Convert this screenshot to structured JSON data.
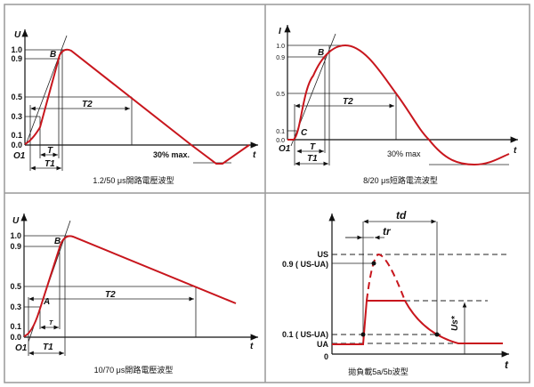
{
  "curve_color": "#c8161d",
  "panels": [
    {
      "caption": "1.2/50 μs開路電壓波型",
      "yaxis": "U",
      "xaxis": "t",
      "ticks": [
        "1.0",
        "0.9",
        "0.5",
        "0.3",
        "0.1",
        "0.0"
      ],
      "labels": {
        "B": "B",
        "O": "O1",
        "T": "T",
        "T1": "T1",
        "T2": "T2",
        "note": "30% max."
      }
    },
    {
      "caption": "8/20 μs短路電流波型",
      "yaxis": "I",
      "xaxis": "t",
      "ticks": [
        "1.0",
        "0.9",
        "0.5",
        "0.1",
        "0.0"
      ],
      "labels": {
        "B": "B",
        "C": "C",
        "O": "O1",
        "T": "T",
        "T1": "T1",
        "T2": "T2",
        "note": "30% max"
      }
    },
    {
      "caption": "10/70 μs開路電壓波型",
      "yaxis": "U",
      "xaxis": "t",
      "ticks": [
        "1.0",
        "0.9",
        "0.5",
        "0.3",
        "0.1",
        "0.0"
      ],
      "labels": {
        "A": "A",
        "B": "B",
        "O": "O1",
        "T": "T",
        "T1": "T1",
        "T2": "T2"
      }
    },
    {
      "caption": "拋負載5a/5b波型",
      "xaxis": "t",
      "ticks": {
        "us": "US",
        "p9": "0.9 ( US-UA)",
        "p1": "0.1 ( US-UA)",
        "ua": "UA",
        "zero": "0"
      },
      "labels": {
        "td": "td",
        "tr": "tr",
        "us_star": "Us*"
      }
    }
  ]
}
